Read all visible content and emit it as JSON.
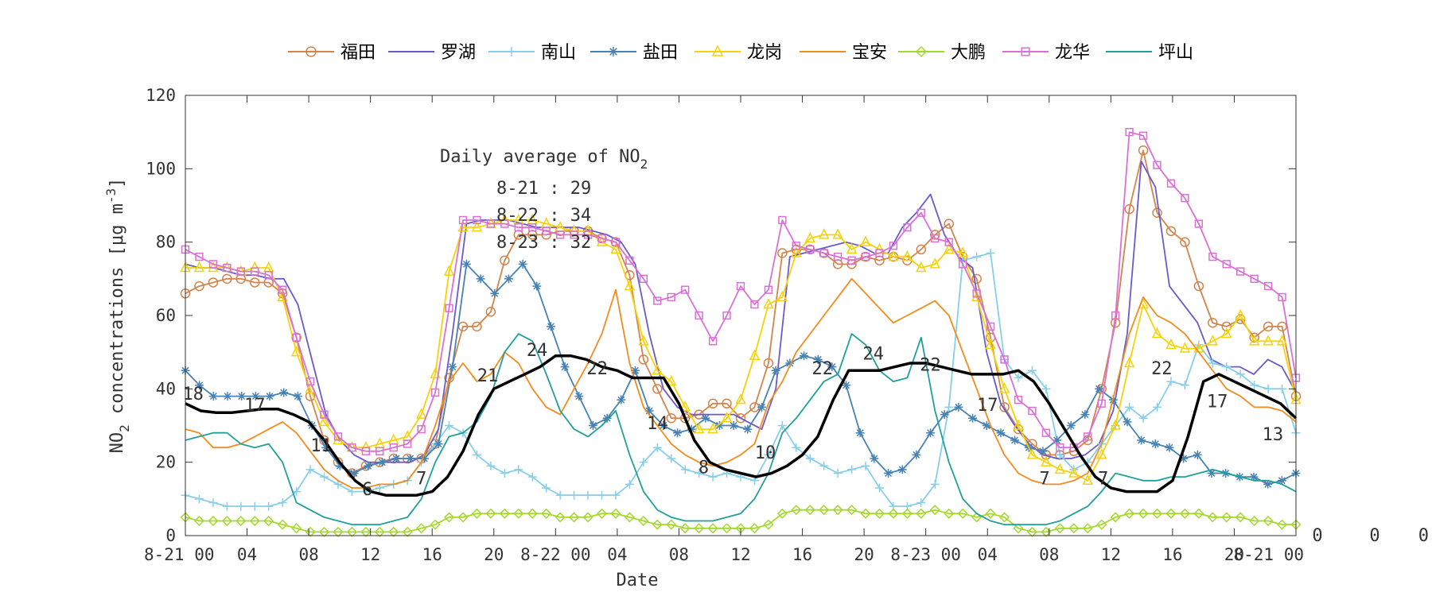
{
  "chart_data": {
    "type": "line",
    "title": "",
    "xlabel": "Date",
    "ylabel_parts": [
      "NO",
      "2",
      " concentrations [",
      "μ",
      "g m",
      "-3",
      "]"
    ],
    "ylim": [
      0,
      120
    ],
    "yticks": [
      0,
      20,
      40,
      60,
      80,
      100,
      120
    ],
    "xlim": [
      0,
      72
    ],
    "xticks": [
      {
        "x": 0,
        "label": "8-21 00"
      },
      {
        "x": 4,
        "label": "04"
      },
      {
        "x": 8,
        "label": "08"
      },
      {
        "x": 12,
        "label": "12"
      },
      {
        "x": 16,
        "label": "16"
      },
      {
        "x": 20,
        "label": "20"
      },
      {
        "x": 24,
        "label": "8-22 00"
      },
      {
        "x": 28,
        "label": "04"
      },
      {
        "x": 32,
        "label": "08"
      },
      {
        "x": 36,
        "label": "12"
      },
      {
        "x": 40,
        "label": "16"
      },
      {
        "x": 44,
        "label": "20"
      },
      {
        "x": 48,
        "label": "8-23 00"
      },
      {
        "x": 52,
        "label": "04"
      },
      {
        "x": 56,
        "label": "08"
      },
      {
        "x": 60,
        "label": "12"
      },
      {
        "x": 64,
        "label": "16"
      },
      {
        "x": 68,
        "label": "20"
      },
      {
        "x": 72,
        "label": "8-21 00"
      }
    ],
    "grid": false,
    "legend_position": "top",
    "annotation": {
      "title_parts": [
        "Daily average of NO",
        "2"
      ],
      "lines": [
        "8-21 : 29",
        "8-22 : 34",
        "8-23 : 32"
      ]
    },
    "mean_labels": [
      {
        "x": 0.5,
        "y": 37,
        "label": "18"
      },
      {
        "x": 4.5,
        "y": 34,
        "label": "17"
      },
      {
        "x": 8.8,
        "y": 23,
        "label": "11"
      },
      {
        "x": 11.8,
        "y": 11,
        "label": "6"
      },
      {
        "x": 15.3,
        "y": 14,
        "label": "7"
      },
      {
        "x": 19.6,
        "y": 42,
        "label": "21"
      },
      {
        "x": 22.8,
        "y": 49,
        "label": "24"
      },
      {
        "x": 26.7,
        "y": 44,
        "label": "22"
      },
      {
        "x": 30.6,
        "y": 29,
        "label": "14"
      },
      {
        "x": 33.6,
        "y": 17,
        "label": "8"
      },
      {
        "x": 37.6,
        "y": 21,
        "label": "10"
      },
      {
        "x": 41.3,
        "y": 44,
        "label": "22"
      },
      {
        "x": 44.6,
        "y": 48,
        "label": "24"
      },
      {
        "x": 48.3,
        "y": 45,
        "label": "22"
      },
      {
        "x": 52.0,
        "y": 34,
        "label": "17"
      },
      {
        "x": 55.7,
        "y": 14,
        "label": "7"
      },
      {
        "x": 59.5,
        "y": 14,
        "label": "7"
      },
      {
        "x": 63.3,
        "y": 44,
        "label": "22"
      },
      {
        "x": 66.9,
        "y": 35,
        "label": "17"
      },
      {
        "x": 70.5,
        "y": 26,
        "label": "13"
      }
    ],
    "outside_labels": [
      {
        "y": 0,
        "label": "0"
      },
      {
        "y": 0,
        "label": "0"
      },
      {
        "y": 0,
        "label": "0"
      }
    ],
    "mean_series": {
      "name": "",
      "color": "#000000",
      "values": [
        36,
        34,
        33.5,
        33.5,
        34,
        34.5,
        34.5,
        33,
        31,
        26,
        20,
        15,
        12,
        11,
        11,
        11,
        12,
        16,
        23,
        33,
        40,
        42,
        44,
        46,
        49,
        49,
        48,
        46,
        45,
        43,
        43,
        43,
        36,
        26,
        20,
        18,
        17,
        16,
        17,
        19,
        22,
        27,
        37,
        45,
        45,
        45,
        46,
        47,
        47,
        46,
        45,
        44,
        44,
        44,
        45,
        42,
        36,
        29,
        22,
        16,
        13,
        12,
        12,
        12,
        15,
        27,
        42,
        44,
        42,
        40,
        38,
        36,
        32
      ]
    },
    "series": [
      {
        "name": "福田",
        "color": "#d2844c",
        "marker": "circle",
        "values": [
          66,
          68,
          69,
          70,
          70,
          69,
          69,
          66,
          54,
          38,
          26,
          20,
          17,
          19,
          20,
          21,
          21,
          21,
          25,
          43,
          57,
          57,
          61,
          75,
          82,
          82,
          82,
          83,
          83,
          83,
          81,
          80,
          71,
          48,
          40,
          32,
          32,
          33,
          36,
          36,
          32,
          35,
          47,
          77,
          78,
          78,
          77,
          74,
          74,
          76,
          75,
          76,
          75,
          78,
          82,
          85,
          76,
          70,
          54,
          35,
          29,
          25,
          22,
          22,
          23,
          26,
          40,
          58,
          89,
          105,
          88,
          83,
          80,
          68,
          58,
          57,
          59,
          54,
          57,
          57,
          38
        ]
      },
      {
        "name": "罗湖",
        "color": "#6a5acd",
        "marker": "none",
        "values": [
          74,
          73,
          73,
          72,
          71,
          71,
          70,
          70,
          63,
          48,
          33,
          26,
          22,
          20,
          20,
          20,
          20,
          22,
          29,
          55,
          85,
          86,
          86,
          86,
          85,
          84,
          84,
          84,
          84,
          83,
          82,
          80,
          74,
          55,
          40,
          35,
          33,
          33,
          33,
          33,
          31,
          29,
          40,
          76,
          77,
          78,
          79,
          80,
          79,
          77,
          77,
          84,
          88,
          93,
          82,
          76,
          73,
          50,
          36,
          30,
          25,
          22,
          21,
          21,
          22,
          25,
          34,
          55,
          102,
          95,
          68,
          63,
          58,
          48,
          46,
          46,
          44,
          48,
          46,
          39
        ]
      },
      {
        "name": "南山",
        "color": "#87ceeb",
        "marker": "plus",
        "values": [
          11,
          10,
          9,
          8,
          8,
          8,
          8,
          9,
          12,
          18,
          16,
          14,
          12,
          12,
          13,
          14,
          15,
          20,
          25,
          30,
          28,
          22,
          19,
          17,
          18,
          16,
          13,
          11,
          11,
          11,
          11,
          11,
          14,
          20,
          24,
          21,
          18,
          17,
          16,
          17,
          16,
          15,
          22,
          30,
          24,
          21,
          19,
          17,
          18,
          19,
          13,
          8,
          8,
          9,
          14,
          35,
          75,
          76,
          77,
          48,
          43,
          45,
          40,
          22,
          18,
          20,
          25,
          30,
          35,
          32,
          35,
          42,
          41,
          52,
          47,
          46,
          44,
          41,
          40,
          40,
          28
        ]
      },
      {
        "name": "盐田",
        "color": "#4682b4",
        "marker": "star",
        "values": [
          45,
          41,
          38,
          38,
          38,
          38,
          38,
          39,
          38,
          30,
          24,
          19,
          17,
          19,
          20,
          21,
          21,
          21,
          25,
          46,
          74,
          70,
          66,
          70,
          74,
          68,
          57,
          46,
          38,
          30,
          32,
          37,
          45,
          34,
          30,
          28,
          29,
          32,
          30,
          30,
          29,
          35,
          45,
          47,
          49,
          48,
          46,
          41,
          28,
          21,
          17,
          18,
          22,
          28,
          33,
          35,
          32,
          30,
          28,
          26,
          24,
          23,
          26,
          30,
          33,
          40,
          37,
          31,
          26,
          25,
          24,
          21,
          22,
          17,
          17,
          16,
          16,
          14,
          15,
          17
        ]
      },
      {
        "name": "龙岗",
        "color": "#f5d20a",
        "marker": "triangle",
        "values": [
          73,
          73,
          73,
          73,
          72,
          73,
          73,
          65,
          50,
          40,
          31,
          26,
          24,
          24,
          25,
          26,
          27,
          33,
          44,
          72,
          84,
          84,
          85,
          86,
          86,
          86,
          85,
          84,
          83,
          83,
          80,
          78,
          68,
          53,
          45,
          42,
          35,
          29,
          29,
          32,
          37,
          49,
          63,
          65,
          77,
          81,
          82,
          82,
          78,
          80,
          78,
          76,
          76,
          73,
          74,
          78,
          77,
          65,
          52,
          40,
          30,
          22,
          20,
          18,
          17,
          15,
          22,
          30,
          47,
          63,
          55,
          52,
          51,
          51,
          53,
          55,
          60,
          53,
          53,
          53,
          37
        ]
      },
      {
        "name": "宝安",
        "color": "#f28c1e",
        "marker": "none",
        "values": [
          29,
          28,
          24,
          24,
          25,
          27,
          29,
          31,
          28,
          23,
          18,
          15,
          13,
          13,
          14,
          14,
          15,
          20,
          30,
          42,
          47,
          42,
          44,
          50,
          47,
          40,
          35,
          33,
          40,
          47,
          55,
          67,
          47,
          35,
          30,
          25,
          22,
          20,
          19,
          20,
          22,
          25,
          36,
          42,
          50,
          55,
          60,
          65,
          70,
          66,
          62,
          58,
          60,
          62,
          64,
          60,
          50,
          40,
          30,
          22,
          17,
          15,
          14,
          14,
          15,
          17,
          25,
          40,
          55,
          65,
          60,
          58,
          55,
          50,
          45,
          40,
          38,
          35,
          35,
          34,
          31
        ]
      },
      {
        "name": "大鹏",
        "color": "#a4d82e",
        "marker": "diamond",
        "values": [
          5,
          4,
          4,
          4,
          4,
          4,
          4,
          3,
          2,
          1,
          1,
          1,
          1,
          1,
          1,
          1,
          1,
          2,
          3,
          5,
          5,
          6,
          6,
          6,
          6,
          6,
          6,
          5,
          5,
          5,
          6,
          6,
          5,
          4,
          3,
          3,
          2,
          2,
          2,
          2,
          2,
          2,
          3,
          6,
          7,
          7,
          7,
          7,
          7,
          6,
          6,
          6,
          6,
          6,
          7,
          6,
          6,
          5,
          6,
          5,
          2,
          1,
          1,
          2,
          2,
          2,
          3,
          5,
          6,
          6,
          6,
          6,
          6,
          6,
          5,
          5,
          5,
          4,
          4,
          3,
          3
        ]
      },
      {
        "name": "龙华",
        "color": "#da70d6",
        "marker": "square",
        "values": [
          78,
          76,
          74,
          73,
          72,
          72,
          71,
          67,
          54,
          42,
          33,
          27,
          24,
          23,
          23,
          24,
          25,
          29,
          39,
          62,
          86,
          86,
          85,
          85,
          84,
          84,
          83,
          82,
          82,
          82,
          81,
          80,
          75,
          70,
          64,
          65,
          67,
          60,
          53,
          60,
          68,
          63,
          67,
          86,
          79,
          78,
          77,
          76,
          75,
          76,
          77,
          79,
          84,
          88,
          81,
          80,
          74,
          66,
          57,
          48,
          37,
          34,
          28,
          24,
          24,
          27,
          36,
          60,
          110,
          109,
          101,
          96,
          92,
          85,
          76,
          74,
          72,
          70,
          68,
          65,
          43
        ]
      },
      {
        "name": "坪山",
        "color": "#20a09b",
        "marker": "none",
        "values": [
          26,
          27,
          28,
          28,
          25,
          24,
          25,
          20,
          9,
          7,
          5,
          4,
          3,
          3,
          3,
          4,
          5,
          10,
          20,
          27,
          28,
          31,
          38,
          50,
          55,
          53,
          44,
          34,
          29,
          27,
          30,
          34,
          22,
          12,
          7,
          5,
          4,
          4,
          4,
          5,
          6,
          10,
          17,
          28,
          32,
          37,
          42,
          44,
          55,
          52,
          45,
          42,
          43,
          54,
          34,
          20,
          10,
          6,
          4,
          3,
          3,
          3,
          3,
          4,
          6,
          8,
          12,
          17,
          16,
          15,
          15,
          16,
          16,
          17,
          18,
          17,
          16,
          15,
          15,
          14,
          12
        ]
      }
    ]
  }
}
